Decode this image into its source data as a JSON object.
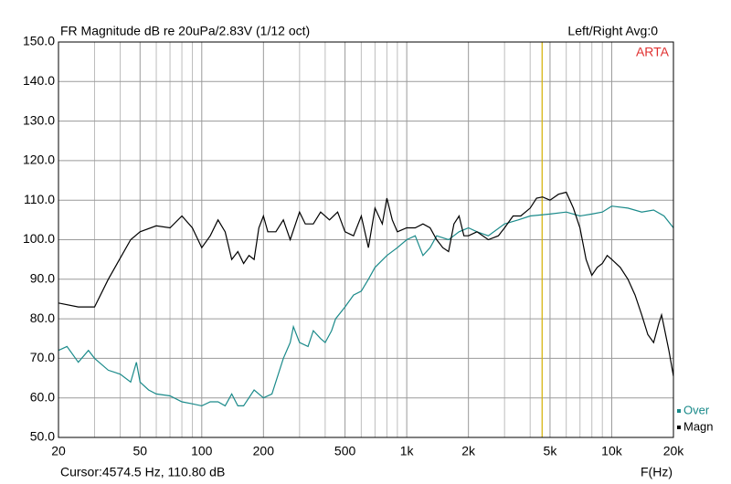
{
  "chart_data": {
    "type": "line",
    "title": "FR Magnitude dB re 20uPa/2.83V (1/12 oct)",
    "status": "Left/Right  Avg:0",
    "brand": "ARTA",
    "x_label": "F(Hz)",
    "cursor_x": 4574.5,
    "cursor_text": "Cursor:4574.5 Hz, 110.80 dB",
    "log_x": true,
    "grid": true,
    "xlim": [
      20,
      20000
    ],
    "ylim": [
      50,
      150
    ],
    "xticks": [
      20,
      50,
      100,
      200,
      500,
      {
        "value": 1000,
        "label": "1k"
      },
      {
        "value": 2000,
        "label": "2k"
      },
      {
        "value": 5000,
        "label": "5k"
      },
      {
        "value": 10000,
        "label": "10k"
      },
      {
        "value": 20000,
        "label": "20k"
      }
    ],
    "xminor_ticks": [
      30,
      40,
      60,
      70,
      80,
      90,
      300,
      400,
      600,
      700,
      800,
      900,
      3000,
      4000,
      6000,
      7000,
      8000,
      9000
    ],
    "yticks": [
      {
        "value": 50,
        "label": "50.0"
      },
      {
        "value": 60,
        "label": "60.0"
      },
      {
        "value": 70,
        "label": "70.0"
      },
      {
        "value": 80,
        "label": "80.0"
      },
      {
        "value": 90,
        "label": "90.0"
      },
      {
        "value": 100,
        "label": "100.0"
      },
      {
        "value": 110,
        "label": "110.0"
      },
      {
        "value": 120,
        "label": "120.0"
      },
      {
        "value": 130,
        "label": "130.0"
      },
      {
        "value": 140,
        "label": "140.0"
      },
      {
        "value": 150,
        "label": "150.0"
      }
    ],
    "series": [
      {
        "name": "Over",
        "color": "#1a8a8a",
        "x": [
          20,
          22,
          25,
          28,
          30,
          35,
          40,
          45,
          48,
          50,
          55,
          60,
          70,
          80,
          90,
          100,
          110,
          120,
          130,
          140,
          150,
          160,
          180,
          200,
          220,
          250,
          270,
          280,
          300,
          330,
          350,
          380,
          400,
          430,
          450,
          500,
          550,
          600,
          650,
          700,
          800,
          900,
          1000,
          1100,
          1200,
          1300,
          1400,
          1600,
          1800,
          2000,
          2200,
          2500,
          3000,
          3500,
          4000,
          5000,
          6000,
          7000,
          8000,
          9000,
          10000,
          12000,
          14000,
          16000,
          18000,
          20000
        ],
        "values": [
          72,
          73,
          69,
          72,
          70,
          67,
          66,
          64,
          69,
          64,
          62,
          61,
          60.5,
          59,
          58.5,
          58,
          59,
          59,
          58,
          61,
          58,
          58,
          62,
          60,
          61,
          70,
          74,
          78,
          74,
          73,
          77,
          75,
          74,
          77,
          80,
          83,
          86,
          87,
          90,
          93,
          96,
          98,
          100,
          101,
          96,
          98,
          101,
          100,
          102,
          103,
          102,
          101,
          104,
          105,
          106,
          106.5,
          107,
          106,
          106.5,
          107,
          108.5,
          108,
          107,
          107.5,
          106,
          103
        ]
      },
      {
        "name": "Magn",
        "color": "#000000",
        "x": [
          20,
          25,
          30,
          35,
          45,
          50,
          60,
          70,
          80,
          90,
          100,
          110,
          120,
          130,
          140,
          150,
          160,
          170,
          180,
          190,
          200,
          210,
          230,
          250,
          270,
          300,
          320,
          350,
          380,
          420,
          460,
          500,
          550,
          600,
          650,
          700,
          760,
          800,
          850,
          900,
          1000,
          1100,
          1200,
          1300,
          1400,
          1500,
          1600,
          1700,
          1800,
          1900,
          2000,
          2200,
          2500,
          2800,
          3000,
          3300,
          3600,
          4000,
          4300,
          4600,
          5000,
          5500,
          6000,
          6500,
          7000,
          7500,
          8000,
          8500,
          9000,
          9500,
          10000,
          11000,
          12000,
          13000,
          14000,
          15000,
          16000,
          17000,
          17500,
          18000,
          19000,
          20000
        ],
        "values": [
          84,
          83,
          83,
          90,
          100,
          102,
          103.5,
          103,
          106,
          103,
          98,
          101,
          105,
          102,
          95,
          97,
          94,
          96,
          95,
          103,
          106,
          102,
          102,
          105,
          100,
          107,
          104,
          104,
          107,
          105,
          107,
          102,
          101,
          106,
          98,
          108,
          104,
          110.5,
          105,
          102,
          103,
          103,
          104,
          103,
          100,
          98,
          97,
          104,
          106,
          101,
          101,
          102,
          100,
          101,
          103,
          106,
          106,
          108,
          110.5,
          110.8,
          110,
          111.5,
          112,
          108,
          103,
          95,
          91,
          93,
          94,
          96,
          95,
          93,
          90,
          86,
          81,
          76,
          74,
          79,
          81,
          78,
          72,
          65.5
        ]
      }
    ]
  }
}
